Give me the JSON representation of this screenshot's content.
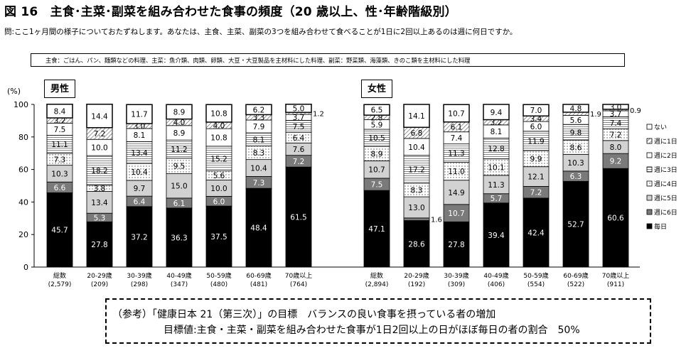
{
  "figure_title": "図 16　主食･主菜･副菜を組み合わせた食事の頻度（20 歳以上、性･年齢階級別）",
  "question": "問:ここ1ヶ月間の様子についておたずねします。あなたは、主食、主菜、副菜の3つを組み合わせて食べることが1日に2回以上あるのは週に何日ですか。",
  "definition": "主食：ごはん、パン、麺類などの料理、主菜：魚介類、肉類、卵類、大豆・大豆製品を主材料にした料理、副菜：野菜類、海藻類、きのこ類を主材料にした料理",
  "unit_label": "(%)",
  "reference": {
    "line1": "（参考）「健康日本 21（第三次）」の目標　バランスの良い食事を摂っている者の増加",
    "line2": "目標値:主食・主菜・副菜を組み合わせた食事が1日2回以上の日がほぼ毎日の者の割合　50%"
  },
  "chart_data": {
    "type": "bar",
    "stacked": true,
    "ylim": [
      0,
      100
    ],
    "yticks": [
      0,
      20,
      40,
      60,
      80,
      100
    ],
    "ylabel": "(%)",
    "legend_position": "right",
    "groups": [
      {
        "label": "男性",
        "categories": [
          "総数",
          "20-29歳",
          "30-39歳",
          "40-49歳",
          "50-59歳",
          "60-69歳",
          "70歳以上"
        ],
        "n": [
          "(2,579)",
          "(209)",
          "(298)",
          "(347)",
          "(480)",
          "(481)",
          "(764)"
        ],
        "series": [
          {
            "name": "毎日",
            "values": [
              45.7,
              27.8,
              37.2,
              36.3,
              37.5,
              48.4,
              61.5
            ]
          },
          {
            "name": "週に6日",
            "values": [
              6.6,
              5.3,
              6.4,
              6.1,
              6.0,
              7.3,
              7.2
            ]
          },
          {
            "name": "週に5日",
            "values": [
              10.3,
              13.4,
              9.7,
              15.0,
              10.0,
              10.4,
              7.6
            ]
          },
          {
            "name": "週に4日",
            "values": [
              7.3,
              3.8,
              10.4,
              9.5,
              5.6,
              8.3,
              6.4
            ]
          },
          {
            "name": "週に3日",
            "values": [
              11.1,
              18.2,
              13.4,
              11.2,
              15.2,
              8.1,
              7.5
            ]
          },
          {
            "name": "週に2日",
            "values": [
              7.5,
              10.0,
              8.1,
              8.9,
              10.8,
              7.9,
              3.7
            ]
          },
          {
            "name": "週に1日",
            "values": [
              3.2,
              7.2,
              3.0,
              4.0,
              4.0,
              3.3,
              1.2
            ]
          },
          {
            "name": "ない",
            "values": [
              8.4,
              14.4,
              11.7,
              8.9,
              10.8,
              6.2,
              5.0
            ]
          }
        ]
      },
      {
        "label": "女性",
        "categories": [
          "総数",
          "20-29歳",
          "30-39歳",
          "40-49歳",
          "50-59歳",
          "60-69歳",
          "70歳以上"
        ],
        "n": [
          "(2,894)",
          "(192)",
          "(309)",
          "(406)",
          "(554)",
          "(522)",
          "(911)"
        ],
        "series": [
          {
            "name": "毎日",
            "values": [
              47.1,
              28.6,
              27.8,
              39.4,
              42.4,
              52.7,
              60.6
            ]
          },
          {
            "name": "週に6日",
            "values": [
              7.5,
              1.6,
              10.7,
              5.7,
              7.2,
              6.3,
              9.2
            ]
          },
          {
            "name": "週に5日",
            "values": [
              10.7,
              13.0,
              14.9,
              11.3,
              12.1,
              10.3,
              8.0
            ]
          },
          {
            "name": "週に4日",
            "values": [
              8.9,
              8.3,
              11.0,
              10.1,
              9.9,
              8.6,
              7.2
            ]
          },
          {
            "name": "週に3日",
            "values": [
              10.5,
              17.2,
              11.3,
              12.8,
              11.9,
              9.8,
              7.4
            ]
          },
          {
            "name": "週に2日",
            "values": [
              5.9,
              10.4,
              7.4,
              8.1,
              6.0,
              5.6,
              3.7
            ]
          },
          {
            "name": "週に1日",
            "values": [
              2.8,
              6.8,
              6.1,
              3.2,
              3.4,
              1.9,
              0.9
            ]
          },
          {
            "name": "ない",
            "values": [
              6.5,
              14.1,
              10.7,
              9.4,
              7.0,
              4.8,
              3.0
            ]
          }
        ]
      }
    ],
    "legend": [
      "ない",
      "週に1日",
      "週に2日",
      "週に3日",
      "週に4日",
      "週に5日",
      "週に6日",
      "毎日"
    ]
  }
}
